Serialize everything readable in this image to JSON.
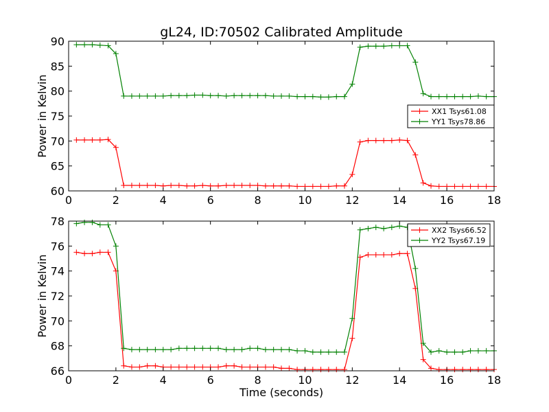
{
  "title": "gL24, ID:70502 Calibrated Amplitude",
  "xlabel": "Time (seconds)",
  "colors": {
    "series_a": "#ff0000",
    "series_b": "#008000",
    "frame": "#000000"
  },
  "chart_data": [
    {
      "type": "line",
      "ylabel": "Power in Kelvin",
      "xlim": [
        0,
        18
      ],
      "ylim": [
        60,
        90
      ],
      "xticks": [
        "0",
        "2",
        "4",
        "6",
        "8",
        "10",
        "12",
        "14",
        "16",
        "18"
      ],
      "yticks": [
        "60",
        "65",
        "70",
        "75",
        "80",
        "85",
        "90"
      ],
      "legend_position": "center-right",
      "grid": false,
      "x": [
        0.33,
        0.67,
        1.0,
        1.33,
        1.67,
        2.0,
        2.33,
        2.67,
        3.0,
        3.33,
        3.67,
        4.0,
        4.33,
        4.67,
        5.0,
        5.33,
        5.67,
        6.0,
        6.33,
        6.67,
        7.0,
        7.33,
        7.67,
        8.0,
        8.33,
        8.67,
        9.0,
        9.33,
        9.67,
        10.0,
        10.33,
        10.67,
        11.0,
        11.33,
        11.67,
        12.0,
        12.33,
        12.67,
        13.0,
        13.33,
        13.67,
        14.0,
        14.33,
        14.67,
        15.0,
        15.33,
        15.67,
        16.0,
        16.33,
        16.67,
        17.0,
        17.33,
        17.67,
        18.0
      ],
      "series": [
        {
          "name": "XX1 Tsys61.08",
          "color": "#ff0000",
          "values": [
            70.2,
            70.2,
            70.2,
            70.2,
            70.3,
            68.7,
            61.1,
            61.1,
            61.1,
            61.1,
            61.1,
            61.0,
            61.1,
            61.1,
            61.0,
            61.0,
            61.1,
            61.0,
            61.0,
            61.1,
            61.1,
            61.1,
            61.1,
            61.1,
            61.0,
            61.0,
            61.0,
            61.0,
            60.9,
            60.9,
            60.9,
            60.9,
            60.9,
            61.0,
            61.0,
            63.3,
            69.8,
            70.1,
            70.1,
            70.1,
            70.1,
            70.2,
            70.1,
            67.2,
            61.6,
            61.0,
            60.9,
            60.9,
            60.9,
            60.9,
            60.9,
            60.9,
            60.9,
            60.9
          ]
        },
        {
          "name": "YY1 Tsys78.86",
          "color": "#008000",
          "values": [
            89.3,
            89.3,
            89.3,
            89.2,
            89.1,
            87.5,
            79.0,
            79.0,
            79.0,
            79.0,
            79.0,
            79.0,
            79.1,
            79.1,
            79.1,
            79.2,
            79.2,
            79.1,
            79.1,
            79.0,
            79.1,
            79.1,
            79.1,
            79.1,
            79.1,
            79.0,
            79.0,
            79.0,
            78.9,
            78.9,
            78.9,
            78.8,
            78.8,
            78.9,
            78.9,
            81.4,
            88.8,
            89.0,
            89.0,
            89.0,
            89.1,
            89.1,
            89.1,
            85.8,
            79.5,
            78.9,
            78.9,
            78.9,
            78.9,
            78.9,
            78.9,
            79.0,
            78.9,
            78.9
          ]
        }
      ]
    },
    {
      "type": "line",
      "ylabel": "Power in Kelvin",
      "xlim": [
        0,
        18
      ],
      "ylim": [
        66,
        78
      ],
      "xticks": [
        "0",
        "2",
        "4",
        "6",
        "8",
        "10",
        "12",
        "14",
        "16",
        "18"
      ],
      "yticks": [
        "66",
        "68",
        "70",
        "72",
        "74",
        "76",
        "78"
      ],
      "legend_position": "top-right",
      "grid": false,
      "x": [
        0.33,
        0.67,
        1.0,
        1.33,
        1.67,
        2.0,
        2.33,
        2.67,
        3.0,
        3.33,
        3.67,
        4.0,
        4.33,
        4.67,
        5.0,
        5.33,
        5.67,
        6.0,
        6.33,
        6.67,
        7.0,
        7.33,
        7.67,
        8.0,
        8.33,
        8.67,
        9.0,
        9.33,
        9.67,
        10.0,
        10.33,
        10.67,
        11.0,
        11.33,
        11.67,
        12.0,
        12.33,
        12.67,
        13.0,
        13.33,
        13.67,
        14.0,
        14.33,
        14.67,
        15.0,
        15.33,
        15.67,
        16.0,
        16.33,
        16.67,
        17.0,
        17.33,
        17.67,
        18.0
      ],
      "series": [
        {
          "name": "XX2 Tsys66.52",
          "color": "#ff0000",
          "values": [
            75.5,
            75.4,
            75.4,
            75.5,
            75.5,
            74.0,
            66.4,
            66.3,
            66.3,
            66.4,
            66.4,
            66.3,
            66.3,
            66.3,
            66.3,
            66.3,
            66.3,
            66.3,
            66.3,
            66.4,
            66.4,
            66.3,
            66.3,
            66.3,
            66.3,
            66.3,
            66.2,
            66.2,
            66.1,
            66.1,
            66.1,
            66.1,
            66.1,
            66.1,
            66.1,
            68.6,
            75.1,
            75.3,
            75.3,
            75.3,
            75.3,
            75.4,
            75.4,
            72.6,
            66.9,
            66.2,
            66.1,
            66.1,
            66.1,
            66.1,
            66.1,
            66.1,
            66.1,
            66.1
          ]
        },
        {
          "name": "YY2 Tsys67.19",
          "color": "#008000",
          "values": [
            77.8,
            77.9,
            77.9,
            77.7,
            77.7,
            76.0,
            67.8,
            67.7,
            67.7,
            67.7,
            67.7,
            67.7,
            67.7,
            67.8,
            67.8,
            67.8,
            67.8,
            67.8,
            67.8,
            67.7,
            67.7,
            67.7,
            67.8,
            67.8,
            67.7,
            67.7,
            67.7,
            67.7,
            67.6,
            67.6,
            67.5,
            67.5,
            67.5,
            67.5,
            67.5,
            70.2,
            77.3,
            77.4,
            77.5,
            77.4,
            77.5,
            77.6,
            77.5,
            74.2,
            68.2,
            67.5,
            67.6,
            67.5,
            67.5,
            67.5,
            67.6,
            67.6,
            67.6,
            67.6
          ]
        }
      ]
    }
  ]
}
